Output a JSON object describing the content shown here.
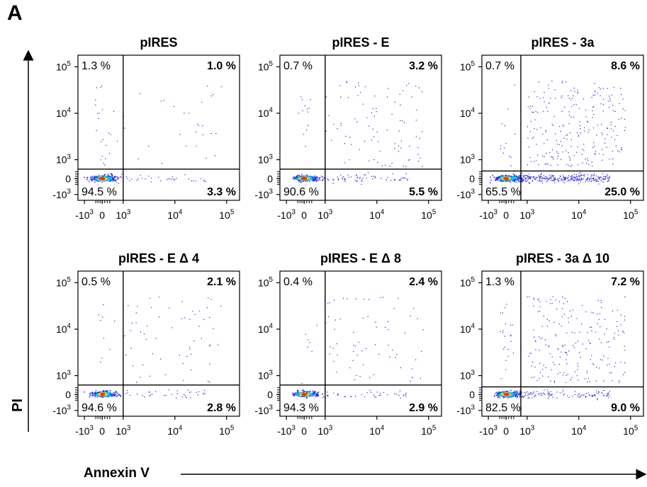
{
  "figure": {
    "panel_letter": "A",
    "xlabel": "Annexin V",
    "ylabel": "PI"
  },
  "chart_data": [
    {
      "type": "scatter",
      "title": "pIRES",
      "xlabel": "Annexin V",
      "ylabel": "PI",
      "scale": "biexponential",
      "x_ticks": [
        "-10^3",
        "0",
        "10^3",
        "10^4",
        "10^5"
      ],
      "y_ticks": [
        "10^5",
        "10^4",
        "10^3",
        "0",
        "-10^3"
      ],
      "gate": {
        "x": 1000,
        "y": 500
      },
      "quadrants": {
        "upper_left": "1.3 %",
        "upper_right": "1.0 %",
        "lower_left": "94.5 %",
        "lower_right": "3.3 %"
      },
      "colors": {
        "sparse": "#2b2bd8",
        "medium": "#00c8ff",
        "dense": "#ffd700",
        "core": "#ff2a00"
      }
    },
    {
      "type": "scatter",
      "title": "pIRES - E",
      "xlabel": "Annexin V",
      "ylabel": "PI",
      "scale": "biexponential",
      "x_ticks": [
        "-10^3",
        "0",
        "10^3",
        "10^4",
        "10^5"
      ],
      "y_ticks": [
        "10^5",
        "10^4",
        "10^3",
        "0",
        "-10^3"
      ],
      "gate": {
        "x": 1000,
        "y": 500
      },
      "quadrants": {
        "upper_left": "0.7 %",
        "upper_right": "3.2 %",
        "lower_left": "90.6 %",
        "lower_right": "5.5 %"
      },
      "colors": {
        "sparse": "#2b2bd8",
        "medium": "#00c8ff",
        "dense": "#ffd700",
        "core": "#ff2a00"
      }
    },
    {
      "type": "scatter",
      "title": "pIRES - 3a",
      "xlabel": "Annexin V",
      "ylabel": "PI",
      "scale": "biexponential",
      "x_ticks": [
        "-10^3",
        "0",
        "10^3",
        "10^4",
        "10^5"
      ],
      "y_ticks": [
        "10^5",
        "10^4",
        "10^3",
        "0",
        "-10^3"
      ],
      "gate": {
        "x": 700,
        "y": 400
      },
      "quadrants": {
        "upper_left": "0.7 %",
        "upper_right": "8.6 %",
        "lower_left": "65.5 %",
        "lower_right": "25.0 %"
      },
      "colors": {
        "sparse": "#2b2bd8",
        "medium": "#00c8ff",
        "dense": "#ffd700",
        "core": "#ff2a00"
      }
    },
    {
      "type": "scatter",
      "title": "pIRES - E Δ 4",
      "xlabel": "Annexin V",
      "ylabel": "PI",
      "scale": "biexponential",
      "x_ticks": [
        "-10^3",
        "0",
        "10^3",
        "10^4",
        "10^5"
      ],
      "y_ticks": [
        "10^5",
        "10^4",
        "10^3",
        "0",
        "-10^3"
      ],
      "gate": {
        "x": 1000,
        "y": 500
      },
      "quadrants": {
        "upper_left": "0.5 %",
        "upper_right": "2.1 %",
        "lower_left": "94.6 %",
        "lower_right": "2.8 %"
      },
      "colors": {
        "sparse": "#2b2bd8",
        "medium": "#00c8ff",
        "dense": "#ffd700",
        "core": "#ff2a00"
      }
    },
    {
      "type": "scatter",
      "title": "pIRES - E Δ 8",
      "xlabel": "Annexin V",
      "ylabel": "PI",
      "scale": "biexponential",
      "x_ticks": [
        "-10^3",
        "0",
        "10^3",
        "10^4",
        "10^5"
      ],
      "y_ticks": [
        "10^5",
        "10^4",
        "10^3",
        "0",
        "-10^3"
      ],
      "gate": {
        "x": 1000,
        "y": 500
      },
      "quadrants": {
        "upper_left": "0.4 %",
        "upper_right": "2.4 %",
        "lower_left": "94.3 %",
        "lower_right": "2.9 %"
      },
      "colors": {
        "sparse": "#2b2bd8",
        "medium": "#00c8ff",
        "dense": "#ffd700",
        "core": "#ff2a00"
      }
    },
    {
      "type": "scatter",
      "title": "pIRES - 3a Δ 10",
      "xlabel": "Annexin V",
      "ylabel": "PI",
      "scale": "biexponential",
      "x_ticks": [
        "-10^3",
        "0",
        "10^3",
        "10^4",
        "10^5"
      ],
      "y_ticks": [
        "10^5",
        "10^4",
        "10^3",
        "0",
        "-10^3"
      ],
      "gate": {
        "x": 700,
        "y": 400
      },
      "quadrants": {
        "upper_left": "1.3 %",
        "upper_right": "7.2 %",
        "lower_left": "82.5 %",
        "lower_right": "9.0 %"
      },
      "colors": {
        "sparse": "#2b2bd8",
        "medium": "#00c8ff",
        "dense": "#ffd700",
        "core": "#ff2a00"
      }
    }
  ]
}
